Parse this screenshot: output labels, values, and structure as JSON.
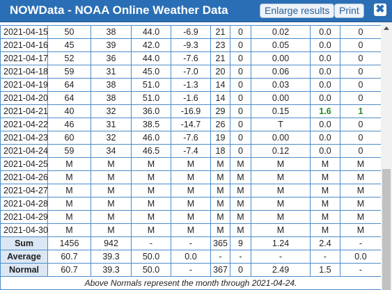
{
  "header": {
    "title": "NOWData - NOAA Online Weather Data",
    "buttons": [
      "Enlarge results",
      "Print"
    ]
  },
  "table": {
    "rows": [
      [
        "2021-04-15",
        "50",
        "38",
        "44.0",
        "-6.9",
        "21",
        "0",
        "0.02",
        "0.0",
        "0"
      ],
      [
        "2021-04-16",
        "45",
        "39",
        "42.0",
        "-9.3",
        "23",
        "0",
        "0.05",
        "0.0",
        "0"
      ],
      [
        "2021-04-17",
        "52",
        "36",
        "44.0",
        "-7.6",
        "21",
        "0",
        "0.00",
        "0.0",
        "0"
      ],
      [
        "2021-04-18",
        "59",
        "31",
        "45.0",
        "-7.0",
        "20",
        "0",
        "0.06",
        "0.0",
        "0"
      ],
      [
        "2021-04-19",
        "64",
        "38",
        "51.0",
        "-1.3",
        "14",
        "0",
        "0.03",
        "0.0",
        "0"
      ],
      [
        "2021-04-20",
        "64",
        "38",
        "51.0",
        "-1.6",
        "14",
        "0",
        "0.00",
        "0.0",
        "0"
      ],
      [
        "2021-04-21",
        "40",
        "32",
        "36.0",
        "-16.9",
        "29",
        "0",
        "0.15",
        "1.6",
        "1"
      ],
      [
        "2021-04-22",
        "46",
        "31",
        "38.5",
        "-14.7",
        "26",
        "0",
        "T",
        "0.0",
        "0"
      ],
      [
        "2021-04-23",
        "60",
        "32",
        "46.0",
        "-7.6",
        "19",
        "0",
        "0.00",
        "0.0",
        "0"
      ],
      [
        "2021-04-24",
        "59",
        "34",
        "46.5",
        "-7.4",
        "18",
        "0",
        "0.12",
        "0.0",
        "0"
      ],
      [
        "2021-04-25",
        "M",
        "M",
        "M",
        "M",
        "M",
        "M",
        "M",
        "M",
        "M"
      ],
      [
        "2021-04-26",
        "M",
        "M",
        "M",
        "M",
        "M",
        "M",
        "M",
        "M",
        "M"
      ],
      [
        "2021-04-27",
        "M",
        "M",
        "M",
        "M",
        "M",
        "M",
        "M",
        "M",
        "M"
      ],
      [
        "2021-04-28",
        "M",
        "M",
        "M",
        "M",
        "M",
        "M",
        "M",
        "M",
        "M"
      ],
      [
        "2021-04-29",
        "M",
        "M",
        "M",
        "M",
        "M",
        "M",
        "M",
        "M",
        "M"
      ],
      [
        "2021-04-30",
        "M",
        "M",
        "M",
        "M",
        "M",
        "M",
        "M",
        "M",
        "M"
      ]
    ],
    "summary": [
      [
        "Sum",
        "1456",
        "942",
        "-",
        "-",
        "365",
        "9",
        "1.24",
        "2.4",
        "-"
      ],
      [
        "Average",
        "60.7",
        "39.3",
        "50.0",
        "0.0",
        "-",
        "-",
        "-",
        "-",
        "0.0"
      ],
      [
        "Normal",
        "60.7",
        "39.3",
        "50.0",
        "-",
        "367",
        "0",
        "2.49",
        "1.5",
        "-"
      ]
    ],
    "footnote": "Above Normals represent the month through 2021-04-24."
  }
}
